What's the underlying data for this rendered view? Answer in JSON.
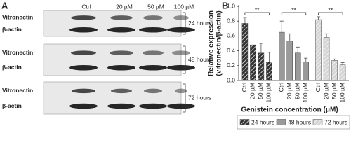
{
  "panel_a": {
    "label": "A",
    "columns": [
      "Ctrl",
      "20 µM",
      "50 µM",
      "100 µM"
    ],
    "blots": [
      {
        "rows": [
          "Vitronectin",
          "β-actin"
        ],
        "time": "24 hours"
      },
      {
        "rows": [
          "Vitronectin",
          "β-actin"
        ],
        "time": "48 hours"
      },
      {
        "rows": [
          "Vitronectin",
          "β-actin"
        ],
        "time": "72 hours"
      }
    ]
  },
  "chart_data": {
    "type": "bar",
    "panel_label": "B",
    "ylabel": [
      "Relative expression",
      "(vitronectin/β-actin)"
    ],
    "xlabel": "Genistein concentration (μM)",
    "categories": [
      "Ctrl",
      "20 µM",
      "50 µM",
      "100 µM"
    ],
    "series": [
      {
        "name": "24 hours",
        "color": "#333333",
        "hatch": true,
        "values": [
          0.77,
          0.48,
          0.37,
          0.25
        ],
        "errors": [
          0.08,
          0.12,
          0.13,
          0.13
        ]
      },
      {
        "name": "48 hours",
        "color": "#9a9a9a",
        "hatch": false,
        "values": [
          0.65,
          0.53,
          0.37,
          0.25
        ],
        "errors": [
          0.15,
          0.1,
          0.08,
          0.05
        ]
      },
      {
        "name": "72 hours",
        "color": "#d4d4d4",
        "hatch": true,
        "values": [
          0.82,
          0.58,
          0.27,
          0.21
        ],
        "errors": [
          0.04,
          0.05,
          0.02,
          0.03
        ]
      }
    ],
    "significance": [
      "**",
      "**",
      "**"
    ],
    "ylim": [
      0,
      1.0
    ],
    "yticks": [
      {
        "value": 0,
        "label": "0.0"
      },
      0.2,
      0.4,
      0.6,
      0.8,
      {
        "value": 1.0,
        "label": "1.0"
      }
    ],
    "legend": "bottom"
  }
}
